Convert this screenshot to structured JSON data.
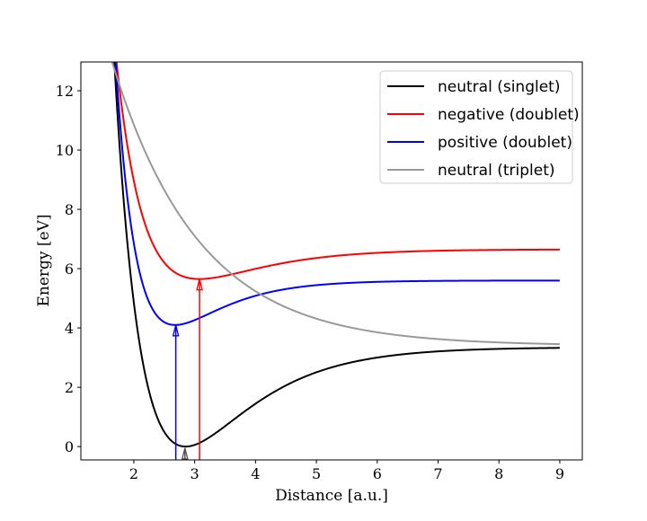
{
  "chart_data": {
    "type": "line",
    "title": "",
    "xlabel": "Distance [a.u.]",
    "ylabel": "Energy [eV]",
    "xlim": [
      1.13,
      9.37
    ],
    "ylim": [
      -0.45,
      12.97
    ],
    "xticks": [
      2,
      3,
      4,
      5,
      6,
      7,
      8,
      9
    ],
    "yticks": [
      0,
      2,
      4,
      6,
      8,
      10,
      12
    ],
    "x_range": [
      1.4,
      9
    ],
    "legend_position": "top-right",
    "series": [
      {
        "name": "neutral (singlet)",
        "color": "#000000",
        "model": "morse",
        "min_x": 2.85,
        "min_y": 0.0,
        "asymptote": 3.35,
        "a": 0.93
      },
      {
        "name": "negative (doublet)",
        "color": "#ff0000",
        "model": "morse",
        "min_x": 3.08,
        "min_y": 5.65,
        "asymptote": 6.65,
        "a": 0.96
      },
      {
        "name": "positive (doublet)",
        "color": "#0000ff",
        "model": "morse",
        "min_x": 2.68,
        "min_y": 4.1,
        "asymptote": 5.6,
        "a": 1.26
      },
      {
        "name": "neutral (triplet)",
        "color": "#999999",
        "model": "exp",
        "x0": 1.7,
        "y0": 12.6,
        "asymptote": 3.4,
        "b": 0.7
      }
    ],
    "arrows": [
      {
        "x": 2.69,
        "from": -0.45,
        "to": 4.1,
        "color": "#0000ff"
      },
      {
        "x": 3.08,
        "from": -0.45,
        "to": 5.65,
        "color": "#ff0000"
      },
      {
        "x": 2.84,
        "from": -0.45,
        "to": -0.05,
        "color": "#555555"
      }
    ]
  }
}
